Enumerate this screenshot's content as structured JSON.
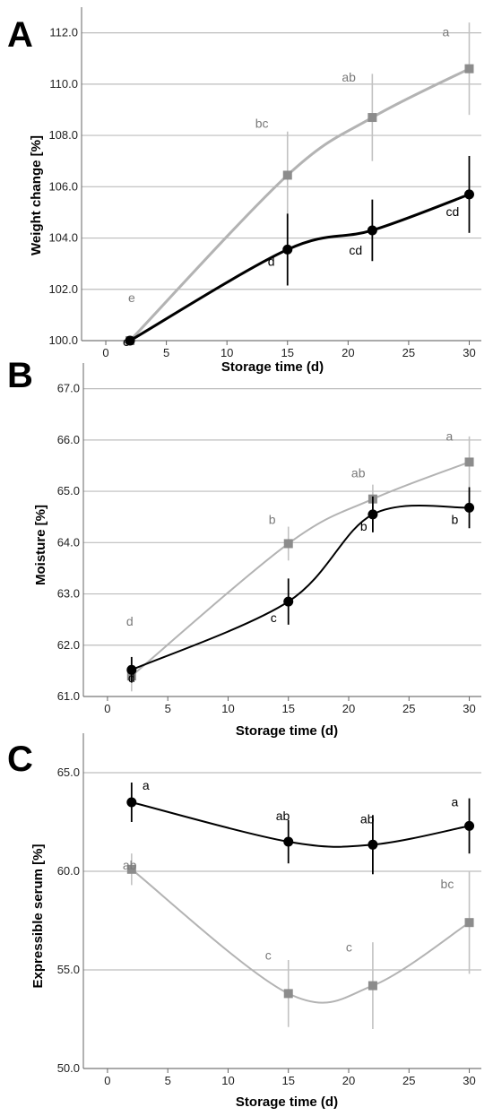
{
  "chart_data": [
    {
      "type": "line",
      "panel": "A",
      "xlabel": "Storage time (d)",
      "ylabel": "Weight change [%]",
      "xlim": [
        -2,
        31
      ],
      "ylim": [
        100,
        113
      ],
      "x_ticks": [
        "0",
        "5",
        "10",
        "15",
        "20",
        "25",
        "30"
      ],
      "y_ticks": [
        "100.0",
        "102.0",
        "104.0",
        "106.0",
        "108.0",
        "110.0",
        "112.0"
      ],
      "x": [
        2,
        15,
        22,
        30
      ],
      "grid": "horizontal",
      "series": [
        {
          "color": "#000000",
          "marker": "circle",
          "values": [
            100.0,
            103.55,
            104.3,
            105.7
          ],
          "error": [
            0,
            1.4,
            1.2,
            1.5
          ],
          "letters": [
            "e",
            "d",
            "cd",
            "cd"
          ]
        },
        {
          "color": "#999999",
          "marker": "square",
          "values": [
            100.0,
            106.45,
            108.7,
            110.6
          ],
          "error": [
            0,
            1.7,
            1.7,
            1.8
          ],
          "letters": [
            "e",
            "bc",
            "ab",
            "a"
          ]
        }
      ]
    },
    {
      "type": "line",
      "panel": "B",
      "xlabel": "Storage time (d)",
      "ylabel": "Moisture [%]",
      "xlim": [
        -2,
        31
      ],
      "ylim": [
        61,
        67.5
      ],
      "x_ticks": [
        "0",
        "5",
        "10",
        "15",
        "20",
        "25",
        "30"
      ],
      "y_ticks": [
        "61.0",
        "62.0",
        "63.0",
        "64.0",
        "65.0",
        "66.0",
        "67.0"
      ],
      "x": [
        2,
        15,
        22,
        30
      ],
      "grid": "horizontal",
      "series": [
        {
          "color": "#000000",
          "marker": "circle",
          "values": [
            61.52,
            62.85,
            64.55,
            64.68
          ],
          "error": [
            0.25,
            0.45,
            0.35,
            0.4
          ],
          "letters": [
            "d",
            "c",
            "b",
            "b"
          ]
        },
        {
          "color": "#999999",
          "marker": "square",
          "values": [
            61.4,
            63.98,
            64.85,
            65.57
          ],
          "error": [
            0.3,
            0.33,
            0.28,
            0.5
          ],
          "letters": [
            "d",
            "b",
            "ab",
            "a"
          ]
        }
      ]
    },
    {
      "type": "line",
      "panel": "C",
      "xlabel": "Storage time (d)",
      "ylabel": "Expressible serum [%]",
      "xlim": [
        -2,
        31
      ],
      "ylim": [
        50,
        67
      ],
      "x_ticks": [
        "0",
        "5",
        "10",
        "15",
        "20",
        "25",
        "30"
      ],
      "y_ticks": [
        "50.0",
        "55.0",
        "60.0",
        "65.0"
      ],
      "x": [
        2,
        15,
        22,
        30
      ],
      "grid": "horizontal",
      "series": [
        {
          "color": "#000000",
          "marker": "circle",
          "values": [
            63.5,
            61.5,
            61.35,
            62.3
          ],
          "error": [
            1.0,
            1.1,
            1.5,
            1.4
          ],
          "letters": [
            "a",
            "ab",
            "ab",
            "a"
          ]
        },
        {
          "color": "#999999",
          "marker": "square",
          "values": [
            60.1,
            53.8,
            54.2,
            57.4
          ],
          "error": [
            0.8,
            1.7,
            2.2,
            2.6
          ],
          "letters": [
            "ab",
            "c",
            "c",
            "bc"
          ]
        }
      ]
    }
  ]
}
